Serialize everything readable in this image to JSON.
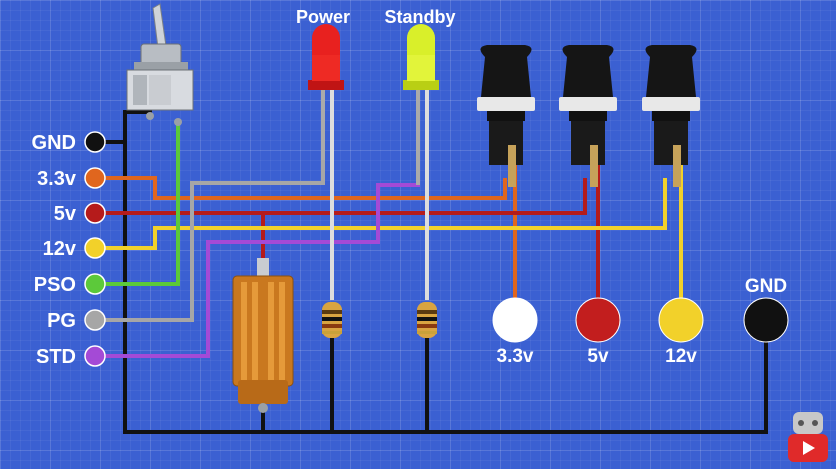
{
  "leds": {
    "power": {
      "label": "Power",
      "color": "#e8211f"
    },
    "standby": {
      "label": "Standby",
      "color": "#d9ef2a"
    }
  },
  "pins": [
    {
      "label": "GND",
      "color": "#111111"
    },
    {
      "label": "3.3v",
      "color": "#e0661e"
    },
    {
      "label": "5v",
      "color": "#b51b1b"
    },
    {
      "label": "12v",
      "color": "#f2d12a"
    },
    {
      "label": "PSO",
      "color": "#5cc93a"
    },
    {
      "label": "PG",
      "color": "#a6a6a6"
    },
    {
      "label": "STD",
      "color": "#a44ad6"
    }
  ],
  "outputs": [
    {
      "label": "3.3v",
      "color": "#ffffff"
    },
    {
      "label": "5v",
      "color": "#c21e1e"
    },
    {
      "label": "12v",
      "color": "#f2d12a"
    },
    {
      "label": "GND",
      "color": "#111111"
    }
  ],
  "colors": {
    "background": "#3b60d2",
    "wire_gray": "#a6a6a6",
    "resistor_body": "#d9a441",
    "power_resistor": "#c9781f"
  },
  "icons": [
    "toggle-switch-icon",
    "fuse-holder-icon",
    "power-resistor-icon",
    "resistor-icon",
    "led-icon",
    "youtube-icon"
  ]
}
